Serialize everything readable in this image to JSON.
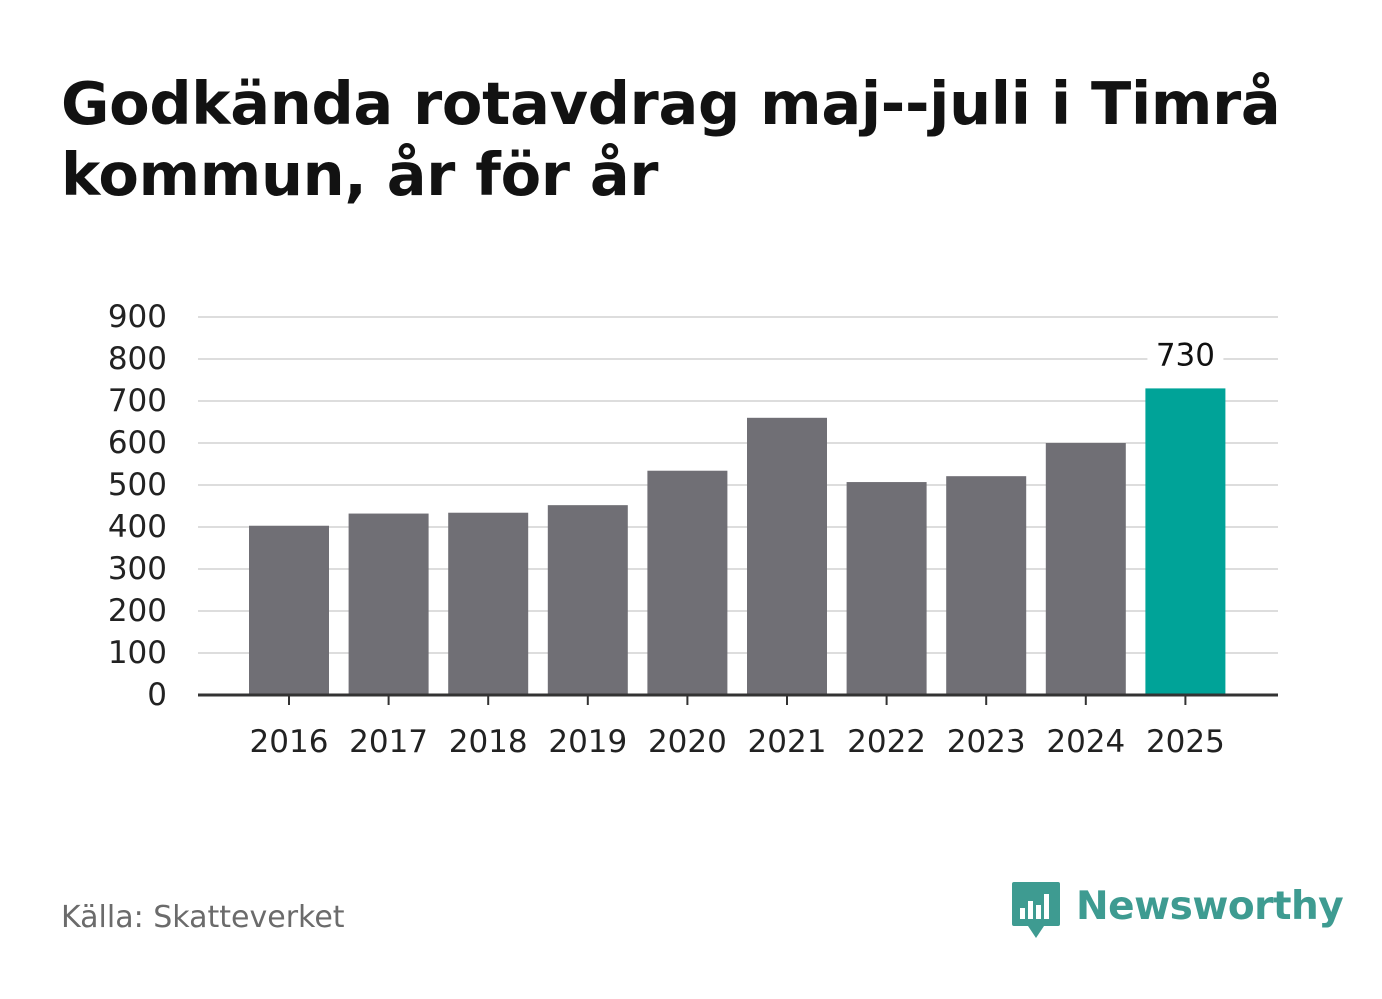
{
  "title": "Godkända rotavdrag maj--juli i Timrå kommun, år för år",
  "source": "Källa: Skatteverket",
  "brand": {
    "name": "Newsworthy",
    "logo_icon": "bar-chart-speech-bubble-icon"
  },
  "colors": {
    "bar_default": "#706f75",
    "bar_highlight": "#00a398",
    "gridline": "#dddddd",
    "axis": "#333333",
    "text": "#222222",
    "brand": "#3e9b91"
  },
  "chart_data": {
    "type": "bar",
    "categories": [
      "2016",
      "2017",
      "2018",
      "2019",
      "2020",
      "2021",
      "2022",
      "2023",
      "2024",
      "2025"
    ],
    "values": [
      403,
      432,
      434,
      452,
      534,
      660,
      507,
      521,
      600,
      730
    ],
    "highlight_index": 9,
    "data_labels": [
      {
        "index": 9,
        "text": "730"
      }
    ],
    "y_ticks": [
      "0",
      "100",
      "200",
      "300",
      "400",
      "500",
      "600",
      "700",
      "800",
      "900"
    ],
    "ylim": [
      0,
      900
    ],
    "grid": true,
    "legend": "none",
    "xlabel": "",
    "ylabel": ""
  }
}
